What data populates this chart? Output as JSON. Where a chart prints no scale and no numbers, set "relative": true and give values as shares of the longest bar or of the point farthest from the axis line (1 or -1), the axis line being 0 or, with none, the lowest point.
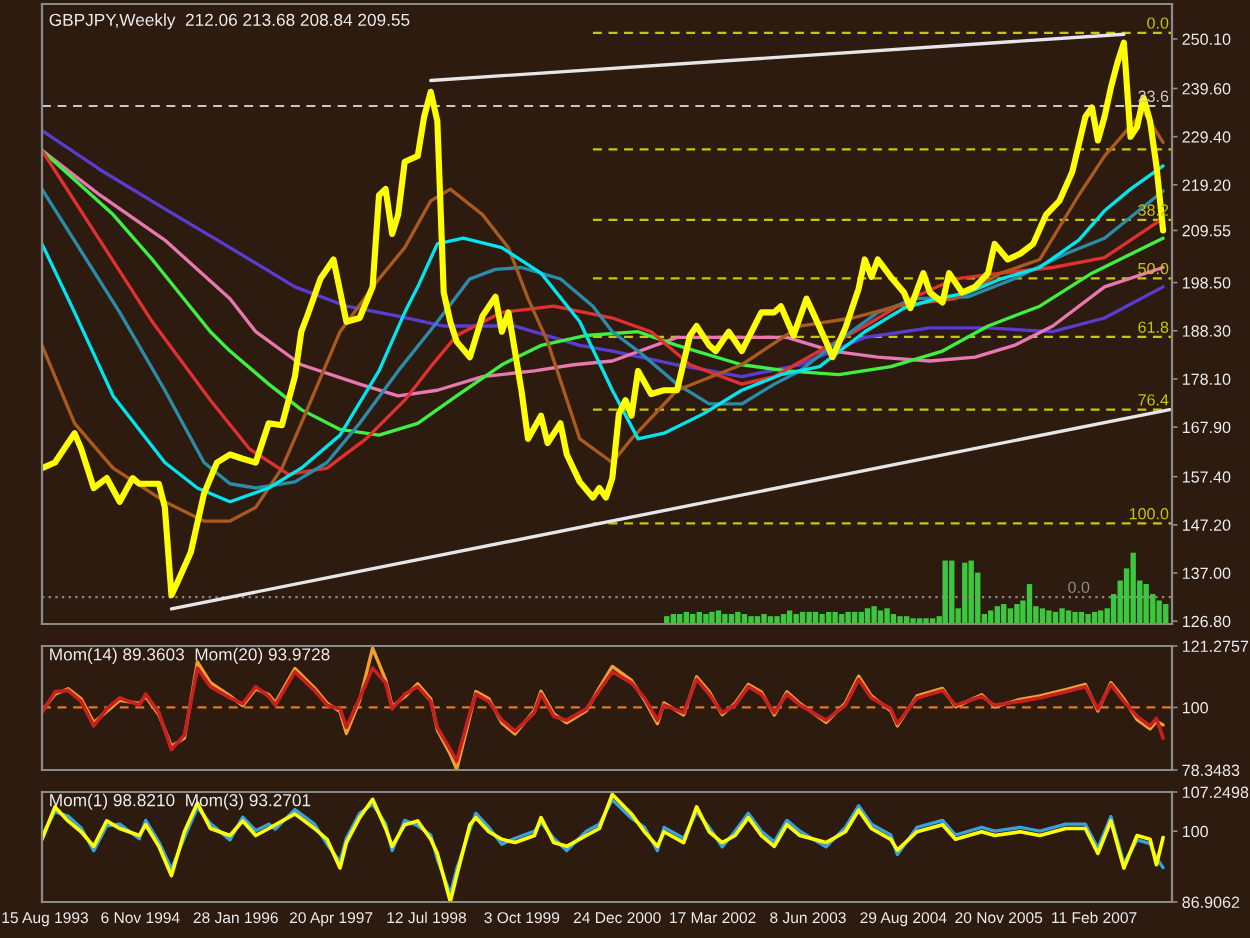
{
  "chart_data": [
    {
      "type": "line",
      "title": "GBPJPY,Weekly  212.06 213.68 208.84 209.55",
      "xlim": [
        "1993-08-01",
        "2008-02-12"
      ],
      "ylim": [
        126.2,
        257.5
      ],
      "yticks": [
        {
          "value": 250.1,
          "label": "250.10"
        },
        {
          "value": 239.6,
          "label": "239.60"
        },
        {
          "value": 229.4,
          "label": "229.40"
        },
        {
          "value": 219.2,
          "label": "219.20"
        },
        209.55,
        {
          "value": 198.5,
          "label": "198.50"
        },
        {
          "value": 188.3,
          "label": "188.30"
        },
        {
          "value": 178.1,
          "label": "178.10"
        },
        {
          "value": 167.9,
          "label": "167.90"
        },
        {
          "value": 157.4,
          "label": "157.40"
        },
        {
          "value": 147.2,
          "label": "147.20"
        },
        {
          "value": 137,
          "label": "137.00"
        },
        {
          "value": 126.8,
          "label": "126.80"
        }
      ],
      "tick_labels": "y",
      "series": [
        {
          "color": "#c8c8c8",
          "line_style": "dashed",
          "x": [
            "1993-08-01",
            "2008-02-12"
          ],
          "values": [
            235.9,
            235.9
          ]
        },
        {
          "color": "#8c8c8c",
          "line_style": "dotted",
          "x": [
            "1993-08-01",
            "2008-02-12"
          ],
          "values": [
            131.9,
            131.9
          ]
        },
        {
          "color": "#c8c800",
          "line_style": "dashed",
          "x": [
            "2000-09",
            "2008-02-12"
          ],
          "values": [
            251.4,
            251.4
          ]
        },
        {
          "color": "#c8c800",
          "line_style": "dashed",
          "x": [
            "2000-09",
            "2008-02-12"
          ],
          "values": [
            226.7,
            226.7
          ]
        },
        {
          "color": "#c8c800",
          "line_style": "dashed",
          "x": [
            "2000-09",
            "2008-02-12"
          ],
          "values": [
            211.8,
            211.8
          ]
        },
        {
          "color": "#c8c800",
          "line_style": "dashed",
          "x": [
            "2000-09",
            "2008-02-12"
          ],
          "values": [
            199.4,
            199.4
          ]
        },
        {
          "color": "#c8c800",
          "line_style": "dashed",
          "x": [
            "2000-09",
            "2008-02-12"
          ],
          "values": [
            187.0,
            187.0
          ]
        },
        {
          "color": "#c8c800",
          "line_style": "dashed",
          "x": [
            "2000-09",
            "2008-02-12"
          ],
          "values": [
            171.6,
            171.6
          ]
        },
        {
          "color": "#c8c800",
          "line_style": "dashed",
          "x": [
            "2000-09",
            "2008-02-12"
          ],
          "values": [
            147.5,
            147.5
          ]
        },
        {
          "color": "#5a3cd0",
          "x": [
            "1993-08",
            "1994-05",
            "1995-03",
            "1996-01",
            "1996-11",
            "1997-07",
            "1998-03",
            "1998-10",
            "1999-09",
            "2000-07",
            "2000-12",
            "2001-10",
            "2002-08",
            "2003-05",
            "2004-03",
            "2005-01",
            "2005-10",
            "2006-08",
            "2007-04",
            "2008-01"
          ],
          "values": [
            230.7,
            222.4,
            214.1,
            205.9,
            197.6,
            193.5,
            191.4,
            189.3,
            189.3,
            185.2,
            184.0,
            181.1,
            178.6,
            181.1,
            186.9,
            188.9,
            188.9,
            188.1,
            191.0,
            197.6
          ]
        },
        {
          "color": "#e878b0",
          "x": [
            "1993-08",
            "1994-05",
            "1995-03",
            "1996-01",
            "1996-05",
            "1996-12",
            "1997-09",
            "1998-03",
            "1998-09",
            "1999-04",
            "1999-12",
            "2000-06",
            "2000-12",
            "2001-10",
            "2002-08",
            "2003-03",
            "2003-10",
            "2004-05",
            "2005-01",
            "2005-08",
            "2006-02",
            "2006-08",
            "2007-04",
            "2008-01"
          ],
          "values": [
            226.5,
            217.0,
            207.5,
            195.1,
            188.1,
            181.1,
            177.0,
            174.5,
            175.7,
            178.6,
            179.8,
            181.1,
            181.9,
            186.9,
            186.9,
            186.9,
            184.0,
            182.7,
            181.9,
            182.7,
            185.2,
            189.3,
            197.6,
            201.7
          ]
        },
        {
          "color": "#40f040",
          "x": [
            "1993-08",
            "1994-07",
            "1995-01",
            "1995-10",
            "1996-01",
            "1996-07",
            "1996-12",
            "1997-06",
            "1997-12",
            "1998-06",
            "1998-12",
            "1999-07",
            "2000-01",
            "2000-08",
            "2001-04",
            "2001-10",
            "2002-08",
            "2003-03",
            "2003-11",
            "2004-07",
            "2005-03",
            "2005-10",
            "2006-06",
            "2007-02",
            "2008-01"
          ],
          "values": [
            226.5,
            212.9,
            203.4,
            188.1,
            184.0,
            177.0,
            171.6,
            167.4,
            166.2,
            168.7,
            174.5,
            181.1,
            185.2,
            187.3,
            188.1,
            185.2,
            181.1,
            179.8,
            179.0,
            180.7,
            184.0,
            189.3,
            193.5,
            200.5,
            207.9
          ]
        },
        {
          "color": "#e03030",
          "x": [
            "1993-08",
            "1995-01",
            "1995-10",
            "1996-04",
            "1996-10",
            "1997-04",
            "1997-10",
            "1998-04",
            "1998-08",
            "1998-12",
            "1999-07",
            "2000-03",
            "2000-12",
            "2001-06",
            "2001-12",
            "2002-08",
            "2003-01",
            "2003-08",
            "2004-03",
            "2004-10",
            "2005-05",
            "2005-12",
            "2006-08",
            "2007-04",
            "2008-01"
          ],
          "values": [
            226.5,
            190.2,
            173.6,
            163.3,
            157.9,
            159.2,
            165.4,
            173.6,
            180.7,
            187.3,
            192.2,
            193.5,
            191.0,
            188.1,
            181.1,
            177.0,
            178.6,
            184.0,
            189.3,
            195.1,
            199.3,
            200.5,
            201.7,
            203.8,
            212.1
          ]
        },
        {
          "color": "#2a8ca8",
          "x": [
            "1993-08",
            "1994-08",
            "1995-03",
            "1995-09",
            "1996-01",
            "1996-05",
            "1996-11",
            "1997-04",
            "1997-09",
            "1998-03",
            "1998-09",
            "1999-02",
            "1999-06",
            "1999-10",
            "2000-04",
            "2000-09",
            "2000-12",
            "2001-04",
            "2001-10",
            "2002-03",
            "2002-08",
            "2003-01",
            "2003-05",
            "2003-10",
            "2004-05",
            "2004-11",
            "2005-07",
            "2006-02",
            "2006-10",
            "2007-04",
            "2008-01"
          ],
          "values": [
            218.3,
            192.2,
            175.7,
            160.4,
            155.9,
            155.0,
            156.3,
            160.4,
            168.7,
            179.8,
            190.2,
            199.3,
            201.3,
            201.7,
            199.3,
            193.5,
            188.1,
            184.0,
            177.0,
            172.8,
            172.8,
            177.0,
            179.8,
            185.2,
            192.2,
            195.1,
            195.5,
            199.3,
            204.6,
            207.9,
            217.9
          ]
        },
        {
          "color": "#a85a20",
          "x": [
            "1993-08",
            "1994-01",
            "1994-07",
            "1995-03",
            "1995-09",
            "1996-01",
            "1996-05",
            "1996-09",
            "1996-12",
            "1997-06",
            "1997-12",
            "1998-04",
            "1998-08",
            "1998-11",
            "1999-04",
            "1999-08",
            "1999-11",
            "2000-02",
            "2000-07",
            "2000-12",
            "2001-03",
            "2001-10",
            "2002-08",
            "2003-05",
            "2004-01",
            "2004-08",
            "2005-05",
            "2005-12",
            "2006-06",
            "2006-12",
            "2007-04",
            "2007-10",
            "2008-01"
          ],
          "values": [
            185.2,
            168.7,
            159.2,
            152.1,
            148.0,
            148.0,
            150.9,
            159.2,
            168.7,
            188.1,
            199.3,
            205.9,
            215.8,
            218.3,
            212.9,
            205.9,
            195.1,
            186.0,
            165.4,
            160.4,
            165.4,
            175.7,
            181.1,
            189.3,
            191.0,
            193.5,
            195.1,
            200.5,
            203.4,
            217.0,
            225.3,
            234.8,
            228.2
          ]
        },
        {
          "color": "#00e5ee",
          "x": [
            "1993-08",
            "1994-01",
            "1994-07",
            "1995-03",
            "1995-08",
            "1996-01",
            "1996-07",
            "1996-12",
            "1997-06",
            "1997-12",
            "1998-04",
            "1998-06",
            "1998-09",
            "1999-01",
            "1999-07",
            "2000-01",
            "2000-07",
            "2000-12",
            "2001-04",
            "2001-08",
            "2002-02",
            "2002-08",
            "2003-02",
            "2003-08",
            "2004-03",
            "2004-09",
            "2005-02",
            "2005-07",
            "2005-12",
            "2006-06",
            "2006-12",
            "2007-04",
            "2007-08",
            "2008-01"
          ],
          "values": [
            206.7,
            192.2,
            174.5,
            160.4,
            155.0,
            152.1,
            155.0,
            159.2,
            166.2,
            179.8,
            192.2,
            197.6,
            206.7,
            207.9,
            205.9,
            200.5,
            190.2,
            175.7,
            165.4,
            166.6,
            170.7,
            175.7,
            179.0,
            180.7,
            188.1,
            193.1,
            195.1,
            196.4,
            199.3,
            201.7,
            207.5,
            213.7,
            218.3,
            223.2
          ]
        },
        {
          "color": "#e6e6e6",
          "x": [
            "1998-08",
            "2007-07"
          ],
          "values": [
            241.3,
            251.1
          ]
        },
        {
          "color": "#e6e6e6",
          "x": [
            "1995-04",
            "2008-02"
          ],
          "values": [
            129.4,
            171.6
          ]
        },
        {
          "color": "#ffff00",
          "x": [
            "1993-08",
            "1993-10",
            "1994-01",
            "1994-02",
            "1994-04",
            "1994-06",
            "1994-08",
            "1994-10",
            "1994-11",
            "1995-02",
            "1995-03",
            "1995-04",
            "1995-05",
            "1995-07",
            "1995-09",
            "1995-11",
            "1996-01",
            "1996-03",
            "1996-05",
            "1996-07",
            "1996-09",
            "1996-11",
            "1996-12",
            "1997-01",
            "1997-03",
            "1997-05",
            "1997-07",
            "1997-09",
            "1997-11",
            "1997-12",
            "1998-01",
            "1998-02",
            "1998-03",
            "1998-04",
            "1998-06",
            "1998-07",
            "1998-08",
            "1998-09",
            "1998-10",
            "1998-11",
            "1998-12",
            "1999-02",
            "1999-04",
            "1999-06",
            "1999-07",
            "1999-08",
            "1999-10",
            "1999-11",
            "2000-01",
            "2000-02",
            "2000-04",
            "2000-05",
            "2000-07",
            "2000-09",
            "2000-10",
            "2000-11",
            "2000-12",
            "2001-01",
            "2001-02",
            "2001-03",
            "2001-04",
            "2001-06",
            "2001-08",
            "2001-10",
            "2001-12",
            "2002-01",
            "2002-03",
            "2002-04",
            "2002-06",
            "2002-08",
            "2002-11",
            "2003-01",
            "2003-02",
            "2003-04",
            "2003-06",
            "2003-07",
            "2003-09",
            "2003-10",
            "2003-12",
            "2004-02",
            "2004-03",
            "2004-04",
            "2004-05",
            "2004-07",
            "2004-09",
            "2004-10",
            "2004-12",
            "2005-01",
            "2005-03",
            "2005-04",
            "2005-06",
            "2005-08",
            "2005-10",
            "2005-11",
            "2006-01",
            "2006-03",
            "2006-05",
            "2006-07",
            "2006-09",
            "2006-11",
            "2007-01",
            "2007-02",
            "2007-03",
            "2007-04",
            "2007-05",
            "2007-06",
            "2007-07",
            "2007-08",
            "2007-09",
            "2007-10",
            "2007-11",
            "2007-12",
            "2008-01"
          ],
          "values": [
            159.2,
            160.4,
            166.6,
            163.3,
            155.0,
            157.1,
            152.1,
            157.1,
            155.9,
            155.9,
            150.9,
            132.3,
            135.2,
            141.4,
            153.8,
            160.4,
            162.1,
            161.2,
            160.4,
            168.7,
            168.3,
            178.6,
            188.1,
            191.8,
            199.3,
            203.4,
            190.2,
            191.0,
            197.6,
            217.0,
            218.3,
            208.8,
            212.9,
            224.1,
            225.3,
            233.6,
            238.9,
            232.7,
            196.4,
            190.2,
            186.0,
            182.7,
            191.4,
            195.5,
            188.1,
            192.2,
            175.7,
            165.4,
            170.3,
            164.5,
            168.7,
            162.1,
            156.3,
            153.0,
            155.0,
            153.0,
            157.1,
            170.7,
            173.6,
            170.3,
            179.8,
            174.9,
            175.7,
            175.7,
            187.3,
            189.3,
            185.2,
            184.0,
            188.1,
            184.0,
            192.2,
            192.2,
            193.5,
            187.3,
            195.1,
            192.2,
            186.0,
            182.7,
            188.9,
            197.2,
            203.4,
            199.7,
            203.4,
            199.7,
            196.4,
            193.1,
            200.5,
            196.4,
            194.3,
            200.5,
            196.4,
            197.6,
            200.5,
            206.7,
            203.4,
            204.6,
            206.7,
            212.9,
            215.8,
            222.0,
            233.6,
            235.6,
            228.6,
            233.6,
            239.8,
            245.1,
            249.3,
            229.4,
            231.5,
            237.7,
            232.7,
            223.2,
            209.55
          ]
        }
      ],
      "annotations": [
        {
          "text": "0.0",
          "x": "2007-12-07",
          "y": 251.4
        },
        {
          "text": "23.6",
          "x": "2007-11-16",
          "y": 235.9
        },
        {
          "text": "38.2",
          "x": "2007-11-16",
          "y": 211.8
        },
        {
          "text": "50.0",
          "x": "2007-11-16",
          "y": 199.4
        },
        {
          "text": "61.8",
          "x": "2007-11-16",
          "y": 187.0
        },
        {
          "text": "76.4",
          "x": "2007-11-16",
          "y": 171.6
        },
        {
          "text": "100.0",
          "x": "2007-10-26",
          "y": 147.5
        },
        {
          "text": "0.0",
          "x": "2006-12-01",
          "y": 131.9
        }
      ]
    },
    {
      "type": "bar",
      "relative": true,
      "tick_labels": false,
      "xlim": [
        "1993-08-01",
        "2008-02-12"
      ],
      "color": "#3cc83c",
      "x": [
        "2001-08",
        "2001-09",
        "2001-10",
        "2001-11",
        "2001-12",
        "2002-01",
        "2002-02",
        "2002-03",
        "2002-04",
        "2002-05",
        "2002-06",
        "2002-07",
        "2002-08",
        "2002-09",
        "2002-10",
        "2002-11",
        "2002-12",
        "2003-01",
        "2003-02",
        "2003-03",
        "2003-04",
        "2003-05",
        "2003-06",
        "2003-07",
        "2003-08",
        "2003-09",
        "2003-10",
        "2003-11",
        "2003-12",
        "2004-01",
        "2004-02",
        "2004-03",
        "2004-04",
        "2004-05",
        "2004-06",
        "2004-07",
        "2004-08",
        "2004-09",
        "2004-10",
        "2004-11",
        "2004-12",
        "2005-01",
        "2005-02",
        "2005-03",
        "2005-04",
        "2005-05",
        "2005-06",
        "2005-07",
        "2005-08",
        "2005-09",
        "2005-10",
        "2005-11",
        "2005-12",
        "2006-01",
        "2006-02",
        "2006-03",
        "2006-04",
        "2006-05",
        "2006-06",
        "2006-07",
        "2006-08",
        "2006-09",
        "2006-10",
        "2006-11",
        "2006-12",
        "2007-01",
        "2007-02",
        "2007-03",
        "2007-04",
        "2007-05",
        "2007-06",
        "2007-07",
        "2007-08",
        "2007-09",
        "2007-10",
        "2007-11",
        "2007-12",
        "2008-01"
      ],
      "values": [
        0.11,
        0.14,
        0.14,
        0.17,
        0.14,
        0.17,
        0.14,
        0.17,
        0.19,
        0.14,
        0.14,
        0.17,
        0.14,
        0.11,
        0.11,
        0.14,
        0.11,
        0.11,
        0.14,
        0.19,
        0.14,
        0.17,
        0.17,
        0.17,
        0.14,
        0.17,
        0.17,
        0.14,
        0.17,
        0.17,
        0.17,
        0.22,
        0.25,
        0.19,
        0.22,
        0.14,
        0.11,
        0.11,
        0.08,
        0.08,
        0.08,
        0.08,
        0.11,
        0.89,
        0.89,
        0.22,
        0.86,
        0.89,
        0.72,
        0.14,
        0.19,
        0.25,
        0.28,
        0.22,
        0.28,
        0.33,
        0.56,
        0.25,
        0.22,
        0.19,
        0.17,
        0.22,
        0.19,
        0.17,
        0.17,
        0.14,
        0.17,
        0.19,
        0.22,
        0.42,
        0.61,
        0.78,
        1,
        0.61,
        0.56,
        0.42,
        0.33,
        0.28
      ]
    },
    {
      "type": "line",
      "title": "Mom(14) 89.3603  Mom(20) 93.9728",
      "xlim": [
        "1993-08-01",
        "2008-02-12"
      ],
      "ylim": [
        78.3483,
        121.2757
      ],
      "yticks": [
        121.2757,
        100,
        78.3483
      ],
      "tick_labels": "y",
      "x": [
        "1993-08",
        "1993-10",
        "1993-12",
        "1994-02",
        "1994-04",
        "1994-06",
        "1994-08",
        "1994-11",
        "1994-12",
        "1995-02",
        "1995-04",
        "1995-06",
        "1995-08",
        "1995-10",
        "1996-01",
        "1996-03",
        "1996-05",
        "1996-07",
        "1996-08",
        "1996-11",
        "1997-02",
        "1997-04",
        "1997-06",
        "1997-07",
        "1997-09",
        "1997-11",
        "1998-01",
        "1998-02",
        "1998-04",
        "1998-06",
        "1998-08",
        "1998-09",
        "1998-11",
        "1998-12",
        "1999-02",
        "1999-03",
        "1999-05",
        "1999-07",
        "1999-09",
        "1999-12",
        "2000-01",
        "2000-03",
        "2000-05",
        "2000-08",
        "2000-10",
        "2000-12",
        "2001-03",
        "2001-05",
        "2001-07",
        "2001-08",
        "2001-11",
        "2002-01",
        "2002-03",
        "2002-05",
        "2002-07",
        "2002-09",
        "2002-11",
        "2003-01",
        "2003-03",
        "2003-05",
        "2003-09",
        "2003-12",
        "2004-02",
        "2004-04",
        "2004-07",
        "2004-08",
        "2004-11",
        "2005-03",
        "2005-05",
        "2005-09",
        "2005-11",
        "2006-03",
        "2006-06",
        "2006-10",
        "2007-01",
        "2007-03",
        "2007-05",
        "2007-07",
        "2007-09",
        "2007-11",
        "2007-12",
        "2008-01"
      ],
      "series": [
        {
          "color": "#f0a030",
          "values": [
            98.8,
            104.6,
            106.5,
            103.0,
            94.8,
            98.6,
            102.5,
            101.4,
            103.8,
            97.5,
            86.6,
            89.4,
            115.8,
            108.6,
            104.0,
            100.6,
            106.4,
            104.5,
            101.6,
            113.5,
            106.8,
            101.5,
            98.6,
            91.0,
            102.4,
            120.5,
            109.6,
            100.4,
            103.7,
            108.2,
            103.0,
            92.2,
            83.8,
            78.6,
            96.8,
            105.5,
            103.0,
            94.6,
            90.8,
            99.0,
            105.6,
            97.8,
            94.7,
            98.8,
            106.8,
            114.2,
            109.4,
            102.6,
            94.4,
            101.6,
            97.4,
            110.6,
            105.5,
            97.5,
            101.5,
            108.0,
            105.4,
            97.4,
            105.4,
            101.4,
            94.8,
            101.6,
            110.8,
            104.0,
            98.8,
            93.6,
            104.0,
            106.6,
            100.2,
            104.4,
            100.2,
            102.8,
            104.0,
            106.2,
            108.0,
            98.8,
            108.6,
            103.0,
            95.8,
            92.6,
            95.2,
            93.9728
          ]
        },
        {
          "color": "#c82020",
          "values": [
            98.2,
            105.4,
            105.9,
            102.1,
            93.6,
            99.5,
            103.3,
            100.8,
            104.6,
            98.2,
            85.4,
            90.5,
            113.6,
            107.2,
            103.3,
            101.3,
            107.2,
            103.8,
            100.8,
            112.3,
            105.9,
            100.8,
            99.5,
            93.1,
            103.3,
            113.6,
            108.5,
            99.5,
            104.6,
            107.2,
            102.1,
            93.1,
            85.4,
            81.5,
            98.2,
            104.6,
            102.1,
            95.6,
            91.8,
            98.2,
            104.6,
            96.9,
            95.6,
            99.5,
            105.9,
            112.3,
            108.5,
            103.3,
            95.6,
            100.8,
            98.2,
            109.7,
            104.6,
            98.2,
            100.8,
            107.2,
            104.6,
            98.2,
            104.6,
            100.8,
            95.6,
            100.8,
            109.7,
            103.3,
            99.5,
            94.4,
            103.3,
            105.9,
            100.8,
            103.8,
            100.8,
            102.1,
            103.3,
            105.4,
            107.2,
            99.5,
            107.9,
            102.1,
            96.9,
            93.6,
            96.2,
            89.3603
          ]
        }
      ],
      "ref_lines": [
        {
          "axis": "y",
          "value": 100,
          "color": "#e07820",
          "line_style": "dashed"
        }
      ]
    },
    {
      "type": "line",
      "title": "Mom(1) 98.8210  Mom(3) 93.2701",
      "xlim": [
        "1993-08-01",
        "2008-02-12"
      ],
      "ylim": [
        86.9062,
        107.2498
      ],
      "yticks": [
        107.2498,
        100,
        86.9062
      ],
      "xticks": [
        {
          "value": "1993-08-15",
          "label": "15 Aug 1993"
        },
        {
          "value": "1994-11-06",
          "label": "6 Nov 1994"
        },
        {
          "value": "1996-01-28",
          "label": "28 Jan 1996"
        },
        {
          "value": "1997-04-20",
          "label": "20 Apr 1997"
        },
        {
          "value": "1998-07-12",
          "label": "12 Jul 1998"
        },
        {
          "value": "1999-10-03",
          "label": "3 Oct 1999"
        },
        {
          "value": "2000-12-24",
          "label": "24 Dec 2000"
        },
        {
          "value": "2002-03-17",
          "label": "17 Mar 2002"
        },
        {
          "value": "2003-06-08",
          "label": "8 Jun 2003"
        },
        {
          "value": "2004-08-29",
          "label": "29 Aug 2004"
        },
        {
          "value": "2005-11-20",
          "label": "20 Nov 2005"
        },
        {
          "value": "2007-02-11",
          "label": "11 Feb 2007"
        }
      ],
      "x": [
        "1993-08",
        "1993-10",
        "1993-12",
        "1994-02",
        "1994-04",
        "1994-06",
        "1994-08",
        "1994-11",
        "1994-12",
        "1995-02",
        "1995-04",
        "1995-06",
        "1995-08",
        "1995-10",
        "1996-01",
        "1996-03",
        "1996-05",
        "1996-07",
        "1996-08",
        "1996-11",
        "1997-02",
        "1997-04",
        "1997-06",
        "1997-07",
        "1997-09",
        "1997-11",
        "1998-01",
        "1998-02",
        "1998-04",
        "1998-06",
        "1998-08",
        "1998-09",
        "1998-11",
        "1998-12",
        "1999-02",
        "1999-03",
        "1999-05",
        "1999-07",
        "1999-09",
        "1999-12",
        "2000-01",
        "2000-03",
        "2000-05",
        "2000-08",
        "2000-10",
        "2000-12",
        "2001-03",
        "2001-05",
        "2001-07",
        "2001-08",
        "2001-11",
        "2002-01",
        "2002-03",
        "2002-05",
        "2002-07",
        "2002-09",
        "2002-11",
        "2003-01",
        "2003-03",
        "2003-05",
        "2003-09",
        "2003-12",
        "2004-02",
        "2004-04",
        "2004-07",
        "2004-08",
        "2004-11",
        "2005-03",
        "2005-05",
        "2005-09",
        "2005-11",
        "2006-03",
        "2006-06",
        "2006-10",
        "2007-01",
        "2007-03",
        "2007-05",
        "2007-07",
        "2007-09",
        "2007-11",
        "2007-12",
        "2008-01"
      ],
      "series": [
        {
          "color": "#3aa0d8",
          "values": [
            99.2,
            103.6,
            102.8,
            100.6,
            96.4,
            101.0,
            101.3,
            98.6,
            102.0,
            98.0,
            93.0,
            98.8,
            104.4,
            101.4,
            98.4,
            102.6,
            100.1,
            101.3,
            100.4,
            104.0,
            101.3,
            97.6,
            94.4,
            98.7,
            103.3,
            105.0,
            101.4,
            96.4,
            102.0,
            101.0,
            99.3,
            94.8,
            88.4,
            93.0,
            100.3,
            103.3,
            100.7,
            97.6,
            98.7,
            100.0,
            101.6,
            98.7,
            96.4,
            100.0,
            101.3,
            105.8,
            102.4,
            100.7,
            96.4,
            100.7,
            98.7,
            103.6,
            100.7,
            97.1,
            100.0,
            103.3,
            100.0,
            98.0,
            102.0,
            100.0,
            97.1,
            100.7,
            104.7,
            101.3,
            99.3,
            95.7,
            100.7,
            102.0,
            99.3,
            100.7,
            100.0,
            100.7,
            100.0,
            101.3,
            101.3,
            96.8,
            102.7,
            94.0,
            98.4,
            97.7,
            95.0,
            93.2701
          ]
        },
        {
          "color": "#ffff00",
          "values": [
            98.5,
            104.5,
            101.9,
            99.9,
            97.2,
            101.9,
            100.5,
            99.2,
            101.2,
            97.2,
            91.8,
            99.9,
            105.2,
            100.5,
            99.2,
            101.9,
            99.2,
            100.5,
            101.2,
            103.2,
            100.5,
            98.5,
            93.2,
            97.9,
            102.5,
            105.9,
            100.5,
            97.2,
            101.2,
            101.9,
            98.5,
            95.9,
            87.0,
            91.8,
            101.2,
            102.5,
            99.9,
            98.5,
            97.9,
            99.2,
            102.5,
            97.9,
            97.2,
            99.2,
            100.5,
            106.8,
            103.2,
            99.9,
            97.2,
            99.9,
            97.9,
            104.5,
            99.9,
            97.9,
            99.2,
            102.5,
            99.2,
            97.2,
            101.2,
            99.2,
            97.9,
            99.9,
            103.9,
            100.5,
            98.5,
            96.5,
            99.9,
            101.2,
            98.5,
            99.9,
            99.2,
            99.9,
            99.2,
            100.5,
            100.5,
            95.9,
            101.9,
            93.2,
            99.2,
            98.5,
            93.8,
            98.821
          ]
        }
      ]
    }
  ]
}
